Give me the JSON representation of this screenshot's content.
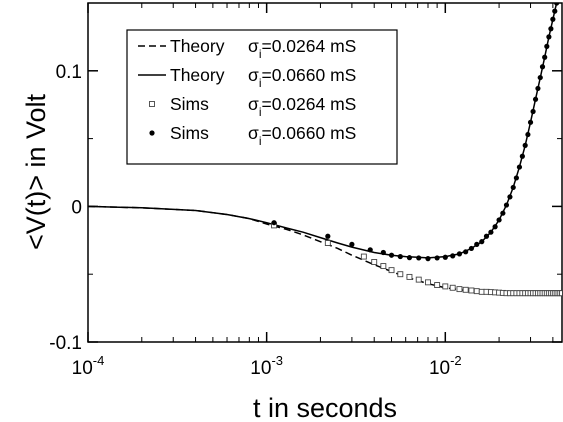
{
  "chart_data": {
    "type": "line",
    "xlabel": "t in seconds",
    "ylabel": "<V(t)> in Volt",
    "xscale": "log",
    "xlim": [
      0.0001,
      0.045
    ],
    "ylim": [
      -0.1,
      0.15
    ],
    "grid": false,
    "legend_position": "top-left",
    "x_ticks": [
      {
        "value": 0.0001,
        "base": "10",
        "exp": "-4"
      },
      {
        "value": 0.001,
        "base": "10",
        "exp": "-3"
      },
      {
        "value": 0.01,
        "base": "10",
        "exp": "-2"
      }
    ],
    "y_ticks": [
      {
        "value": -0.1,
        "label": "-0.1"
      },
      {
        "value": 0,
        "label": "0"
      },
      {
        "value": 0.1,
        "label": "0.1"
      }
    ],
    "legend": [
      {
        "kind": "dashed-line",
        "prefix": "Theory",
        "sigma": "σ",
        "sub": "i",
        "suffix": "=0.0264 mS"
      },
      {
        "kind": "solid-line",
        "prefix": "Theory",
        "sigma": "σ",
        "sub": "i",
        "suffix": "=0.0660 mS"
      },
      {
        "kind": "open-square",
        "prefix": "Sims",
        "sigma": "σ",
        "sub": "i",
        "suffix": "=0.0264 mS"
      },
      {
        "kind": "filled-circle",
        "prefix": "Sims",
        "sigma": "σ",
        "sub": "i",
        "suffix": "=0.0660 mS"
      }
    ],
    "series": [
      {
        "style": "dashed-line",
        "x": [
          0.0001,
          0.0002,
          0.0004,
          0.0006,
          0.0008,
          0.001,
          0.0013,
          0.0016,
          0.002,
          0.0025,
          0.003,
          0.004,
          0.005,
          0.006,
          0.008,
          0.01,
          0.013,
          0.016,
          0.02,
          0.025,
          0.03,
          0.035,
          0.04,
          0.045
        ],
        "y": [
          0,
          -0.001,
          -0.003,
          -0.006,
          -0.009,
          -0.013,
          -0.017,
          -0.021,
          -0.026,
          -0.031,
          -0.036,
          -0.043,
          -0.048,
          -0.052,
          -0.057,
          -0.06,
          -0.062,
          -0.063,
          -0.0635,
          -0.064,
          -0.064,
          -0.064,
          -0.064,
          -0.064
        ]
      },
      {
        "style": "solid-line",
        "x": [
          0.0001,
          0.0002,
          0.0004,
          0.0006,
          0.0008,
          0.001,
          0.0013,
          0.0016,
          0.002,
          0.0025,
          0.003,
          0.004,
          0.005,
          0.006,
          0.007,
          0.008,
          0.01,
          0.012,
          0.014,
          0.016,
          0.018,
          0.02,
          0.022,
          0.024,
          0.026,
          0.028,
          0.03,
          0.032,
          0.034,
          0.036,
          0.038,
          0.04,
          0.042
        ],
        "y": [
          0,
          -0.001,
          -0.003,
          -0.006,
          -0.009,
          -0.012,
          -0.016,
          -0.019,
          -0.023,
          -0.027,
          -0.03,
          -0.034,
          -0.036,
          -0.037,
          -0.0375,
          -0.038,
          -0.037,
          -0.035,
          -0.031,
          -0.026,
          -0.019,
          -0.01,
          0.001,
          0.014,
          0.029,
          0.045,
          0.062,
          0.079,
          0.095,
          0.11,
          0.125,
          0.138,
          0.15
        ]
      },
      {
        "style": "open-square",
        "x": [
          0.0011,
          0.0022,
          0.0035,
          0.004,
          0.0045,
          0.005,
          0.0056,
          0.0063,
          0.0071,
          0.008,
          0.009,
          0.01,
          0.011,
          0.012,
          0.013,
          0.014,
          0.015,
          0.016,
          0.017,
          0.018,
          0.019,
          0.02,
          0.021,
          0.022,
          0.023,
          0.024,
          0.025,
          0.026,
          0.027,
          0.028,
          0.029,
          0.03,
          0.031,
          0.032,
          0.033,
          0.034,
          0.035,
          0.036,
          0.037,
          0.038,
          0.039,
          0.04,
          0.041,
          0.042,
          0.043,
          0.044,
          0.045
        ],
        "y": [
          -0.014,
          -0.027,
          -0.037,
          -0.041,
          -0.044,
          -0.047,
          -0.05,
          -0.052,
          -0.054,
          -0.056,
          -0.058,
          -0.059,
          -0.06,
          -0.061,
          -0.0615,
          -0.062,
          -0.0625,
          -0.063,
          -0.063,
          -0.0632,
          -0.0634,
          -0.0636,
          -0.0638,
          -0.064,
          -0.064,
          -0.064,
          -0.064,
          -0.064,
          -0.064,
          -0.064,
          -0.064,
          -0.064,
          -0.064,
          -0.064,
          -0.064,
          -0.064,
          -0.064,
          -0.064,
          -0.064,
          -0.064,
          -0.064,
          -0.064,
          -0.064,
          -0.064,
          -0.064,
          -0.064,
          -0.064
        ]
      },
      {
        "style": "filled-circle",
        "x": [
          0.0011,
          0.0022,
          0.003,
          0.0038,
          0.0045,
          0.005,
          0.0056,
          0.0063,
          0.0071,
          0.008,
          0.009,
          0.01,
          0.011,
          0.012,
          0.013,
          0.014,
          0.015,
          0.016,
          0.017,
          0.018,
          0.019,
          0.02,
          0.021,
          0.022,
          0.023,
          0.024,
          0.025,
          0.026,
          0.027,
          0.028,
          0.029,
          0.03,
          0.031,
          0.032,
          0.033,
          0.034,
          0.035,
          0.036,
          0.037,
          0.038,
          0.039,
          0.04,
          0.041,
          0.042
        ],
        "y": [
          -0.012,
          -0.022,
          -0.028,
          -0.032,
          -0.034,
          -0.036,
          -0.037,
          -0.0378,
          -0.038,
          -0.0385,
          -0.038,
          -0.0375,
          -0.0365,
          -0.035,
          -0.0335,
          -0.031,
          -0.028,
          -0.026,
          -0.022,
          -0.019,
          -0.015,
          -0.01,
          -0.005,
          0.001,
          0.007,
          0.014,
          0.021,
          0.029,
          0.037,
          0.045,
          0.053,
          0.062,
          0.07,
          0.079,
          0.087,
          0.095,
          0.103,
          0.11,
          0.118,
          0.125,
          0.131,
          0.138,
          0.144,
          0.15
        ]
      }
    ]
  }
}
